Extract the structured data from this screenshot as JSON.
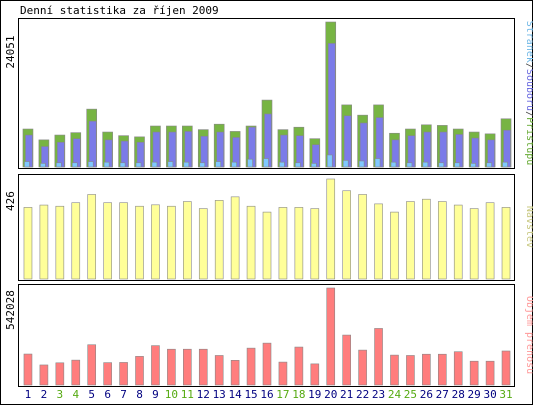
{
  "chart_data": [
    {
      "type": "bar",
      "title": "Denní statistika za říjen 2009",
      "ymax_label": "24051",
      "legend": [
        {
          "text": "Stránek",
          "color": "#6eb7e6"
        },
        {
          "text": "/",
          "color": "#444444"
        },
        {
          "text": "Souborů",
          "color": "#6a6ae0"
        },
        {
          "text": "/",
          "color": "#444444"
        },
        {
          "text": "Přístupů",
          "color": "#66aa33"
        }
      ],
      "series": [
        {
          "name": "Přístupů",
          "color": "#77b443",
          "values": [
            6300,
            4500,
            5300,
            5700,
            9600,
            5800,
            5200,
            5000,
            6800,
            6800,
            6800,
            6200,
            7100,
            5900,
            6800,
            11100,
            6200,
            6600,
            4700,
            24051,
            10300,
            8600,
            10300,
            5600,
            6300,
            7000,
            6900,
            6300,
            5800,
            5500,
            8000
          ]
        },
        {
          "name": "Souborů",
          "color": "#7b7be8",
          "values": [
            5300,
            3400,
            4100,
            4700,
            7600,
            4500,
            4300,
            4100,
            5800,
            5800,
            5900,
            5100,
            5800,
            4900,
            6600,
            8800,
            5300,
            5200,
            3700,
            20500,
            8500,
            7300,
            8200,
            4500,
            5200,
            5800,
            5800,
            5400,
            4800,
            4500,
            6100
          ]
        },
        {
          "name": "Stránek",
          "color": "#7fc8ff",
          "values": [
            900,
            600,
            700,
            700,
            900,
            800,
            700,
            700,
            800,
            900,
            800,
            700,
            900,
            800,
            1300,
            1400,
            800,
            700,
            600,
            2000,
            1100,
            1000,
            1400,
            800,
            700,
            800,
            700,
            700,
            600,
            700,
            800
          ]
        }
      ]
    },
    {
      "type": "bar",
      "ymax_label": "426",
      "legend": [
        {
          "text": "Návštěv",
          "color": "#c8c880"
        }
      ],
      "series": [
        {
          "name": "Návštěv",
          "color": "#ffff99",
          "values": [
            305,
            315,
            310,
            325,
            360,
            325,
            325,
            310,
            316,
            310,
            330,
            300,
            335,
            350,
            310,
            285,
            305,
            305,
            300,
            426,
            376,
            360,
            320,
            285,
            330,
            340,
            330,
            315,
            300,
            325,
            305
          ]
        }
      ]
    },
    {
      "type": "bar",
      "ymax_label": "542028",
      "legend": [
        {
          "text": "Objem přenosu",
          "color": "#ff9999"
        }
      ],
      "series": [
        {
          "name": "Objem přenosu",
          "color": "#ff7d7d",
          "values": [
            173000,
            112000,
            124000,
            139000,
            225000,
            125000,
            126000,
            160000,
            220000,
            200000,
            200000,
            200000,
            165000,
            138000,
            206000,
            234000,
            128000,
            212000,
            118000,
            542028,
            279000,
            195000,
            316000,
            167000,
            165000,
            172000,
            172000,
            186000,
            133000,
            133000,
            190000
          ]
        }
      ]
    }
  ],
  "x_labels": {
    "days": [
      "1",
      "2",
      "3",
      "4",
      "5",
      "6",
      "7",
      "8",
      "9",
      "10",
      "11",
      "12",
      "13",
      "14",
      "15",
      "16",
      "17",
      "18",
      "19",
      "20",
      "21",
      "22",
      "23",
      "24",
      "25",
      "26",
      "27",
      "28",
      "29",
      "30",
      "31"
    ],
    "weekend_days": [
      3,
      4,
      10,
      11,
      17,
      18,
      24,
      25,
      31
    ],
    "weekday_color": "#000080",
    "weekend_color": "#55aa11"
  },
  "colors": {
    "frame": "#000000",
    "outline": "#888888"
  }
}
